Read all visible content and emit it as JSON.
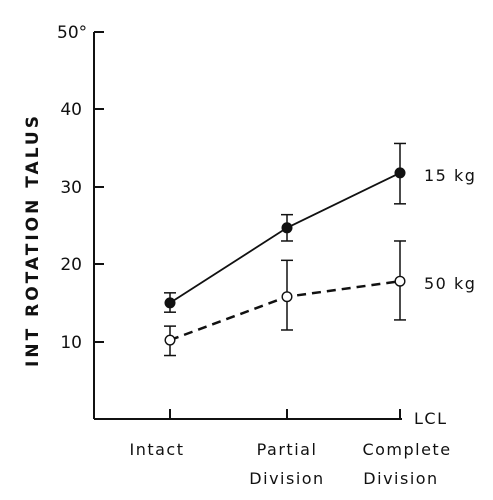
{
  "chart_data": {
    "type": "line",
    "ylabel": "INT ROTATION TALUS",
    "xlabel": "LCL",
    "y_ticks": [
      "10",
      "20",
      "30",
      "40",
      "50°"
    ],
    "ylim": [
      0,
      50
    ],
    "categories": [
      {
        "line1": "Intact",
        "line2": ""
      },
      {
        "line1": "Partial",
        "line2": "Division"
      },
      {
        "line1": "Complete",
        "line2": "Division"
      }
    ],
    "series": [
      {
        "name": "15 kg",
        "marker": "filled-circle",
        "line_style": "solid",
        "values": [
          15,
          24.7,
          31.8
        ],
        "err_low": [
          13.8,
          23.0,
          27.8
        ],
        "err_high": [
          16.3,
          26.4,
          35.6
        ]
      },
      {
        "name": "50 kg",
        "marker": "open-circle",
        "line_style": "dashed",
        "values": [
          10.2,
          15.8,
          17.8
        ],
        "err_low": [
          8.2,
          11.5,
          12.8
        ],
        "err_high": [
          12.0,
          20.5,
          23.0
        ]
      }
    ],
    "grid": false,
    "legend": "direct labels at right end of each line"
  }
}
